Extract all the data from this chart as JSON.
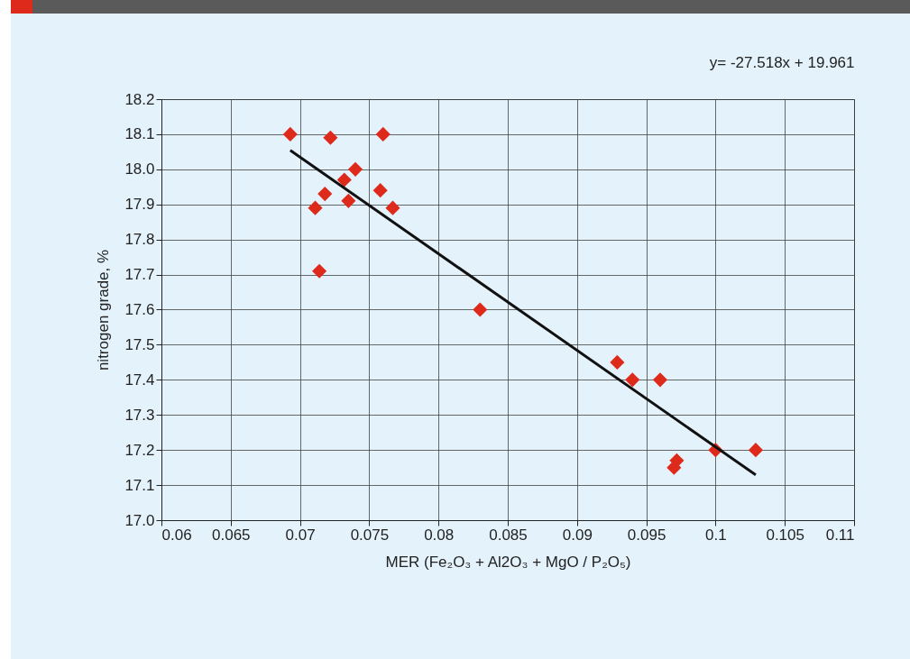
{
  "chart_data": {
    "type": "scatter",
    "xlabel": "MER (Fe₂O₃ + Al2O₃ + MgO / P₂O₅)",
    "ylabel": "nitrogen grade, %",
    "annotations": [
      "y= -27.518x + 19.961"
    ],
    "series": [
      {
        "type": "scatter",
        "color": "#dd2a1b",
        "marker": "diamond",
        "x": [
          0.0693,
          0.0722,
          0.076,
          0.074,
          0.0732,
          0.0718,
          0.0711,
          0.0735,
          0.0758,
          0.0767,
          0.0714,
          0.083,
          0.0929,
          0.094,
          0.096,
          0.097,
          0.0972,
          0.1,
          0.1029
        ],
        "values": [
          18.1,
          18.09,
          18.1,
          18.0,
          17.97,
          17.93,
          17.89,
          17.91,
          17.94,
          17.89,
          17.71,
          17.6,
          17.45,
          17.4,
          17.4,
          17.15,
          17.17,
          17.2,
          17.2
        ]
      },
      {
        "type": "line",
        "color": "#111111",
        "x": [
          0.0693,
          0.1029
        ],
        "values": [
          18.054,
          17.129
        ]
      }
    ],
    "xlim": [
      0.06,
      0.11
    ],
    "xticks": [
      0.06,
      0.065,
      0.07,
      0.075,
      0.08,
      0.085,
      0.09,
      0.095,
      0.1,
      0.105,
      0.11
    ],
    "ylim": [
      17.0,
      18.2
    ],
    "yticks": [
      {
        "value": 17.0,
        "label": "17.0"
      },
      17.1,
      17.2,
      17.3,
      17.4,
      17.5,
      17.6,
      17.7,
      17.8,
      17.9,
      {
        "value": 18.0,
        "label": "18.0"
      },
      18.1,
      18.2
    ],
    "grid": true
  }
}
